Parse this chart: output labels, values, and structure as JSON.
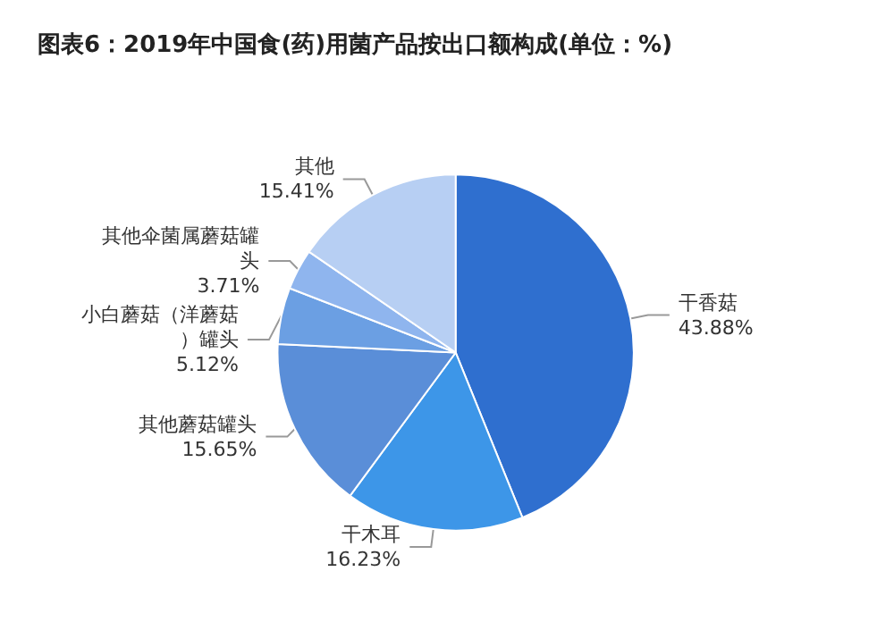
{
  "chart_data": {
    "type": "pie",
    "title": "图表6：2019年中国食(药)用菌产品按出口额构成(单位：%)",
    "categories": [
      "干香菇",
      "干木耳",
      "其他蘑菇罐头",
      "小白蘑菇（洋蘑菇）罐头",
      "其他伞菌属蘑菇罐头",
      "其他"
    ],
    "values": [
      43.88,
      16.23,
      15.65,
      5.12,
      3.71,
      15.41
    ],
    "value_labels": [
      "43.88%",
      "16.23%",
      "15.65%",
      "5.12%",
      "3.71%",
      "15.41%"
    ],
    "colors": [
      "#2f6fcf",
      "#3d96e8",
      "#5a8ed8",
      "#6b9fe3",
      "#8fb5ee",
      "#b7cff3"
    ],
    "legend": false
  }
}
